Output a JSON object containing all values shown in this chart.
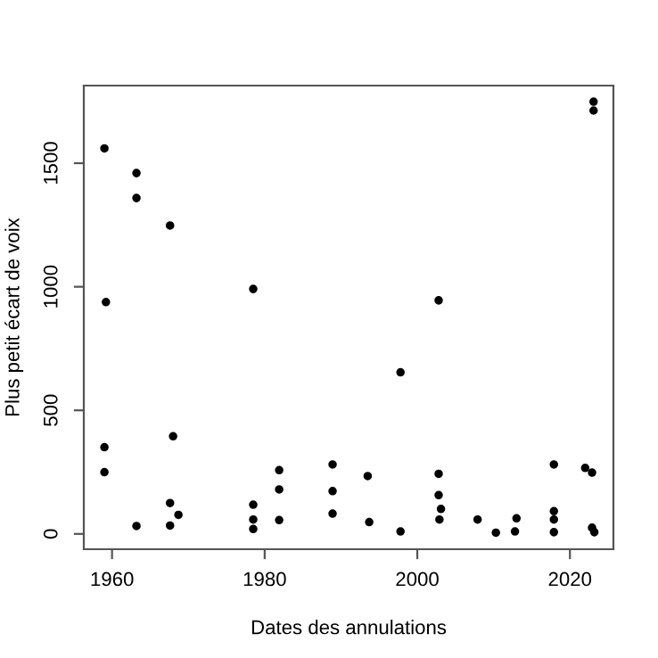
{
  "chart_data": {
    "type": "scatter",
    "xlabel": "Dates des annulations",
    "ylabel": "Plus petit écart de voix",
    "xlim": [
      1956.3,
      2025.7
    ],
    "ylim": [
      -62,
      1814
    ],
    "xticks": [
      1960,
      1980,
      2000,
      2020
    ],
    "yticks": [
      0,
      500,
      1000,
      1500
    ],
    "grid": false,
    "marker": "circle",
    "series": [
      {
        "color": "#000000",
        "x": [
          1959.0,
          1963.2,
          1963.2,
          1967.6,
          1978.5,
          1959.2,
          1959.0,
          1968.0,
          1959.0,
          1963.2,
          1967.6,
          1967.6,
          1968.7,
          1978.5,
          1978.5,
          1978.5,
          1981.9,
          1981.9,
          1981.9,
          1988.9,
          1988.9,
          1988.9,
          1993.5,
          1993.7,
          2023.1,
          2023.1,
          2002.8,
          1997.8,
          1997.8,
          2002.8,
          2002.8,
          2003.1,
          2002.9,
          2007.9,
          2010.3,
          2012.8,
          2013.0,
          2017.9,
          2017.9,
          2017.9,
          2017.9,
          2022.0,
          2022.9,
          2022.9,
          2023.2
        ],
        "values": [
          1560,
          1460,
          1359,
          1248,
          991,
          938,
          351,
          395,
          250,
          32,
          125,
          34,
          77,
          118,
          58,
          20,
          258,
          180,
          56,
          281,
          173,
          82,
          234,
          48,
          1749,
          1713,
          945,
          654,
          10,
          243,
          157,
          101,
          58,
          58,
          5,
          10,
          63,
          281,
          92,
          58,
          7,
          267,
          248,
          25,
          7
        ]
      }
    ]
  }
}
